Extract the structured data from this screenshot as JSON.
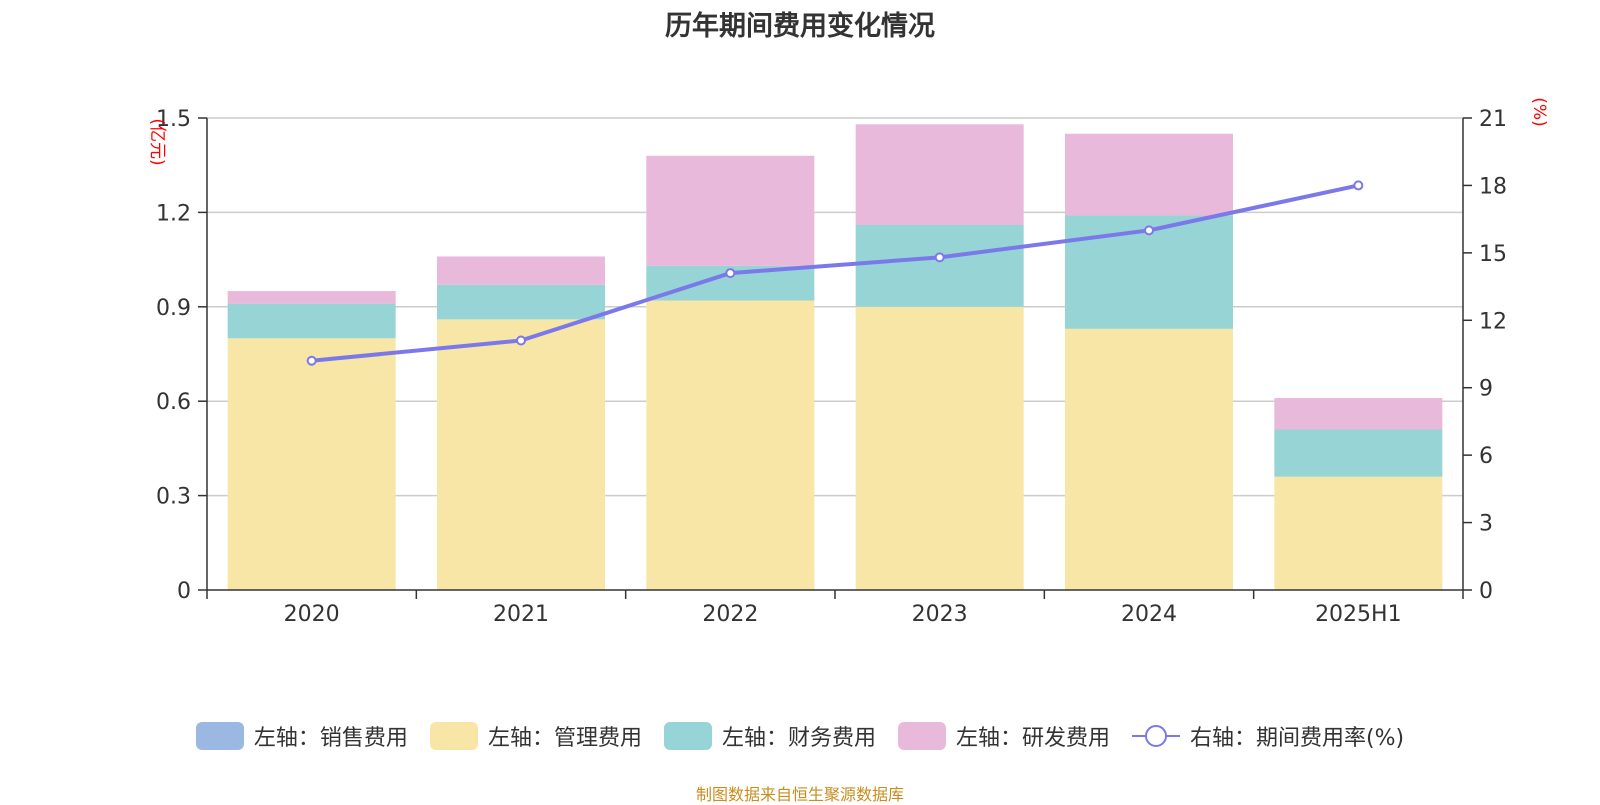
{
  "title": "历年期间费用变化情况",
  "source": "制图数据来自恒生聚源数据库",
  "colors": {
    "sales": "#9bb8e3",
    "admin": "#f8e6a6",
    "finance": "#97d4d5",
    "rd": "#e8b9da",
    "rate": "#7b79ea",
    "axis_unit": "#ff0000",
    "grid": "#cccccc",
    "axis": "#333333"
  },
  "legend": {
    "sales": "左轴：销售费用",
    "admin": "左轴：管理费用",
    "finance": "左轴：财务费用",
    "rd": "左轴：研发费用",
    "rate": "右轴：期间费用率(%)"
  },
  "chart_data": {
    "type": "bar",
    "title": "历年期间费用变化情况",
    "categories": [
      "2020",
      "2021",
      "2022",
      "2023",
      "2024",
      "2025H1"
    ],
    "left_axis": {
      "unit": "(亿元)",
      "ylim": [
        0,
        1.5
      ],
      "ticks": [
        "0",
        "0.3",
        "0.6",
        "0.9",
        "1.2",
        "1.5"
      ]
    },
    "right_axis": {
      "unit": "(%)",
      "ylim": [
        0,
        21
      ],
      "ticks": [
        "0",
        "3",
        "6",
        "9",
        "12",
        "15",
        "18",
        "21"
      ]
    },
    "stacked": true,
    "grid": true,
    "legend_position": "bottom",
    "series": [
      {
        "name": "左轴：销售费用",
        "axis": "left",
        "type": "bar",
        "values": [
          0,
          0,
          0,
          0,
          0,
          0
        ]
      },
      {
        "name": "左轴：管理费用",
        "axis": "left",
        "type": "bar",
        "values": [
          0.8,
          0.86,
          0.92,
          0.9,
          0.83,
          0.36
        ]
      },
      {
        "name": "左轴：财务费用",
        "axis": "left",
        "type": "bar",
        "values": [
          0.11,
          0.11,
          0.11,
          0.26,
          0.36,
          0.15
        ]
      },
      {
        "name": "左轴：研发费用",
        "axis": "left",
        "type": "bar",
        "values": [
          0.04,
          0.09,
          0.35,
          0.32,
          0.26,
          0.1
        ]
      },
      {
        "name": "右轴：期间费用率(%)",
        "axis": "right",
        "type": "line",
        "values": [
          10.2,
          11.1,
          14.1,
          14.8,
          16.0,
          18.0
        ]
      }
    ]
  }
}
